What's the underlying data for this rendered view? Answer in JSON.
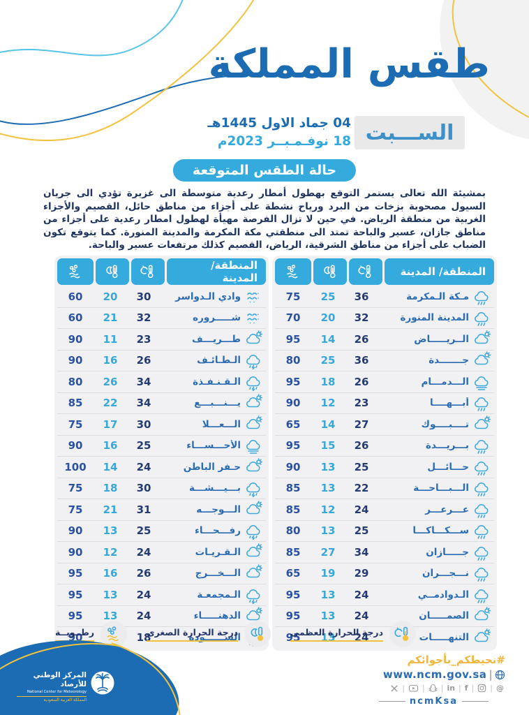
{
  "page": {
    "title": "طقس المملكة",
    "day": "الســـبت",
    "date_hijri": "04 جماد الاول 1445هـ",
    "date_gregorian": "18 نوفـمـبــر 2023م"
  },
  "forecast": {
    "badge": "حالة الطقس المتوقعة",
    "body": "بمشيئة الله تعالى  يستمر التوقع بهطول أمطار رعدية متوسطة الى غزيرة تؤدي الى جريان السيول مصحوبة بزخات من البرد ورياح نشطة على أجزاء من مناطق حائل، القصيم والأجزاء الغربية من منطقة الرياض. في حين لا تزال الفرصة مهيأة لهطول امطار رعدية على أجزاء من مناطق جازان، عسير والباحة تمتد الى منطقتي مكة المكرمة والمدينة المنورة. كما يتوقع تكون الضباب على أجزاء من مناطق الشرقية، الرياض، القصيم كذلك مرتفعات عسير والباحة."
  },
  "tables": {
    "header_city": "المنطقة/ المدينة",
    "right": [
      {
        "city": "مـكة الـمكرمة",
        "icon": "rain",
        "max": "36",
        "min": "25",
        "humidity": "75"
      },
      {
        "city": "المدينة المنورة",
        "icon": "rain",
        "max": "32",
        "min": "20",
        "humidity": "70"
      },
      {
        "city": "الــريـــــاض",
        "icon": "partly",
        "max": "26",
        "min": "14",
        "humidity": "95"
      },
      {
        "city": "جـــــــدة",
        "icon": "partly",
        "max": "36",
        "min": "25",
        "humidity": "80"
      },
      {
        "city": "الـــدمـــام",
        "icon": "fog",
        "max": "26",
        "min": "18",
        "humidity": "95"
      },
      {
        "city": "أبـــهــــا",
        "icon": "rain",
        "max": "23",
        "min": "12",
        "humidity": "90"
      },
      {
        "city": "تــــبــــوك",
        "icon": "partly",
        "max": "27",
        "min": "14",
        "humidity": "65"
      },
      {
        "city": "بـــريـــدة",
        "icon": "rain",
        "max": "26",
        "min": "15",
        "humidity": "95"
      },
      {
        "city": "حـــائـــل",
        "icon": "rain",
        "max": "25",
        "min": "13",
        "humidity": "90"
      },
      {
        "city": "الـــبـــاحـــة",
        "icon": "rain",
        "max": "22",
        "min": "13",
        "humidity": "85"
      },
      {
        "city": "عـــرعـــر",
        "icon": "rain",
        "max": "24",
        "min": "12",
        "humidity": "85"
      },
      {
        "city": "ســـكـــاكـــا",
        "icon": "rain",
        "max": "25",
        "min": "13",
        "humidity": "80"
      },
      {
        "city": "جـــــازان",
        "icon": "rain",
        "max": "34",
        "min": "27",
        "humidity": "85"
      },
      {
        "city": "نـــجـــران",
        "icon": "rain",
        "max": "29",
        "min": "19",
        "humidity": "65"
      },
      {
        "city": "الـدوادمــي",
        "icon": "rain",
        "max": "24",
        "min": "13",
        "humidity": "95"
      },
      {
        "city": "الصمـــــان",
        "icon": "partly",
        "max": "24",
        "min": "13",
        "humidity": "95"
      },
      {
        "city": "التنهـــــات",
        "icon": "partly",
        "max": "24",
        "min": "13",
        "humidity": "95"
      }
    ],
    "left": [
      {
        "city": "وادي الـدواسر",
        "icon": "dust",
        "max": "30",
        "min": "20",
        "humidity": "60"
      },
      {
        "city": "شـــــروره",
        "icon": "dust",
        "max": "32",
        "min": "21",
        "humidity": "60"
      },
      {
        "city": "طـــريـــف",
        "icon": "partly",
        "max": "23",
        "min": "11",
        "humidity": "90"
      },
      {
        "city": "الـطـائـف",
        "icon": "thunder",
        "max": "26",
        "min": "16",
        "humidity": "90"
      },
      {
        "city": "الـقـنـفـذة",
        "icon": "thunder",
        "max": "34",
        "min": "26",
        "humidity": "80"
      },
      {
        "city": "يـــنـــبـــع",
        "icon": "partly",
        "max": "34",
        "min": "22",
        "humidity": "85"
      },
      {
        "city": "الـــعـــلا",
        "icon": "partly",
        "max": "30",
        "min": "17",
        "humidity": "75"
      },
      {
        "city": "الأحـــســـاء",
        "icon": "fog",
        "max": "25",
        "min": "16",
        "humidity": "90"
      },
      {
        "city": "حـفر الباطن",
        "icon": "partly",
        "max": "24",
        "min": "14",
        "humidity": "100"
      },
      {
        "city": "بـــيـــشـــة",
        "icon": "thunder",
        "max": "30",
        "min": "18",
        "humidity": "75"
      },
      {
        "city": "الـــوجـــه",
        "icon": "partly",
        "max": "31",
        "min": "21",
        "humidity": "75"
      },
      {
        "city": "رفـــحـــاء",
        "icon": "thunder",
        "max": "25",
        "min": "13",
        "humidity": "90"
      },
      {
        "city": "الـقـريـات",
        "icon": "partly",
        "max": "24",
        "min": "12",
        "humidity": "90"
      },
      {
        "city": "الـــخـــرج",
        "icon": "partly",
        "max": "26",
        "min": "16",
        "humidity": "95"
      },
      {
        "city": "الـمجمعـة",
        "icon": "thunder",
        "max": "24",
        "min": "13",
        "humidity": "95"
      },
      {
        "city": "الدهنـــــاء",
        "icon": "partly",
        "max": "24",
        "min": "13",
        "humidity": "95"
      },
      {
        "city": "الســــــودة",
        "icon": "thunder",
        "max": "18",
        "min": "08",
        "humidity": "90"
      }
    ]
  },
  "legend": {
    "max": "درجة الحرارة العظمى",
    "min": "درجة الحرارة الصغرى",
    "humidity": "رطــوبــة"
  },
  "footer": {
    "org_ar": "المركز الوطني للأرصاد",
    "org_en": "National Center for Meteorology",
    "org_country": "المملكة العربية السعودية",
    "hashtag": "#نحيطكم_بأجوائكم",
    "website": "www.ncm.gov.sa",
    "handle": "ncmKsa",
    "socials": [
      "x",
      "youtube",
      "snapchat",
      "linkedin",
      "facebook",
      "instagram",
      "threads"
    ]
  },
  "colors": {
    "primary_blue": "#1c6cb3",
    "cyan": "#35aadd",
    "navy": "#23356b",
    "yellow": "#f2c23e",
    "light_blue_curve": "#56c3e9"
  }
}
